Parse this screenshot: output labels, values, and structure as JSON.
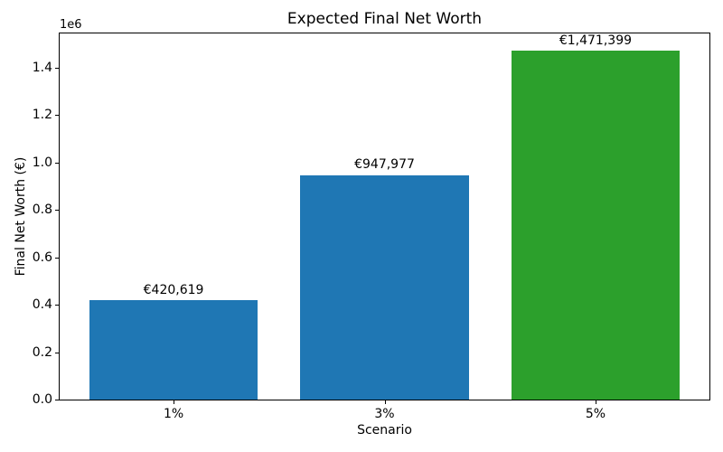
{
  "chart_data": {
    "type": "bar",
    "title": "Expected Final Net Worth",
    "xlabel": "Scenario",
    "ylabel": "Final Net Worth (€)",
    "categories": [
      "1%",
      "3%",
      "5%"
    ],
    "values": [
      420619,
      947977,
      1471399
    ],
    "bar_labels": [
      "€420,619",
      "€947,977",
      "€1,471,399"
    ],
    "bar_colors": [
      "#1f77b4",
      "#1f77b4",
      "#2ca02c"
    ],
    "ylim": [
      0,
      1544969
    ],
    "yticks_e6": [
      0.0,
      0.2,
      0.4,
      0.6,
      0.8,
      1.0,
      1.2,
      1.4
    ],
    "ytick_labels": [
      "0.0",
      "0.2",
      "0.4",
      "0.6",
      "0.8",
      "1.0",
      "1.2",
      "1.4"
    ],
    "offset_text": "1e6",
    "grid": false,
    "legend_position": "none",
    "axis_color": "#000000",
    "background_color": "#ffffff"
  }
}
